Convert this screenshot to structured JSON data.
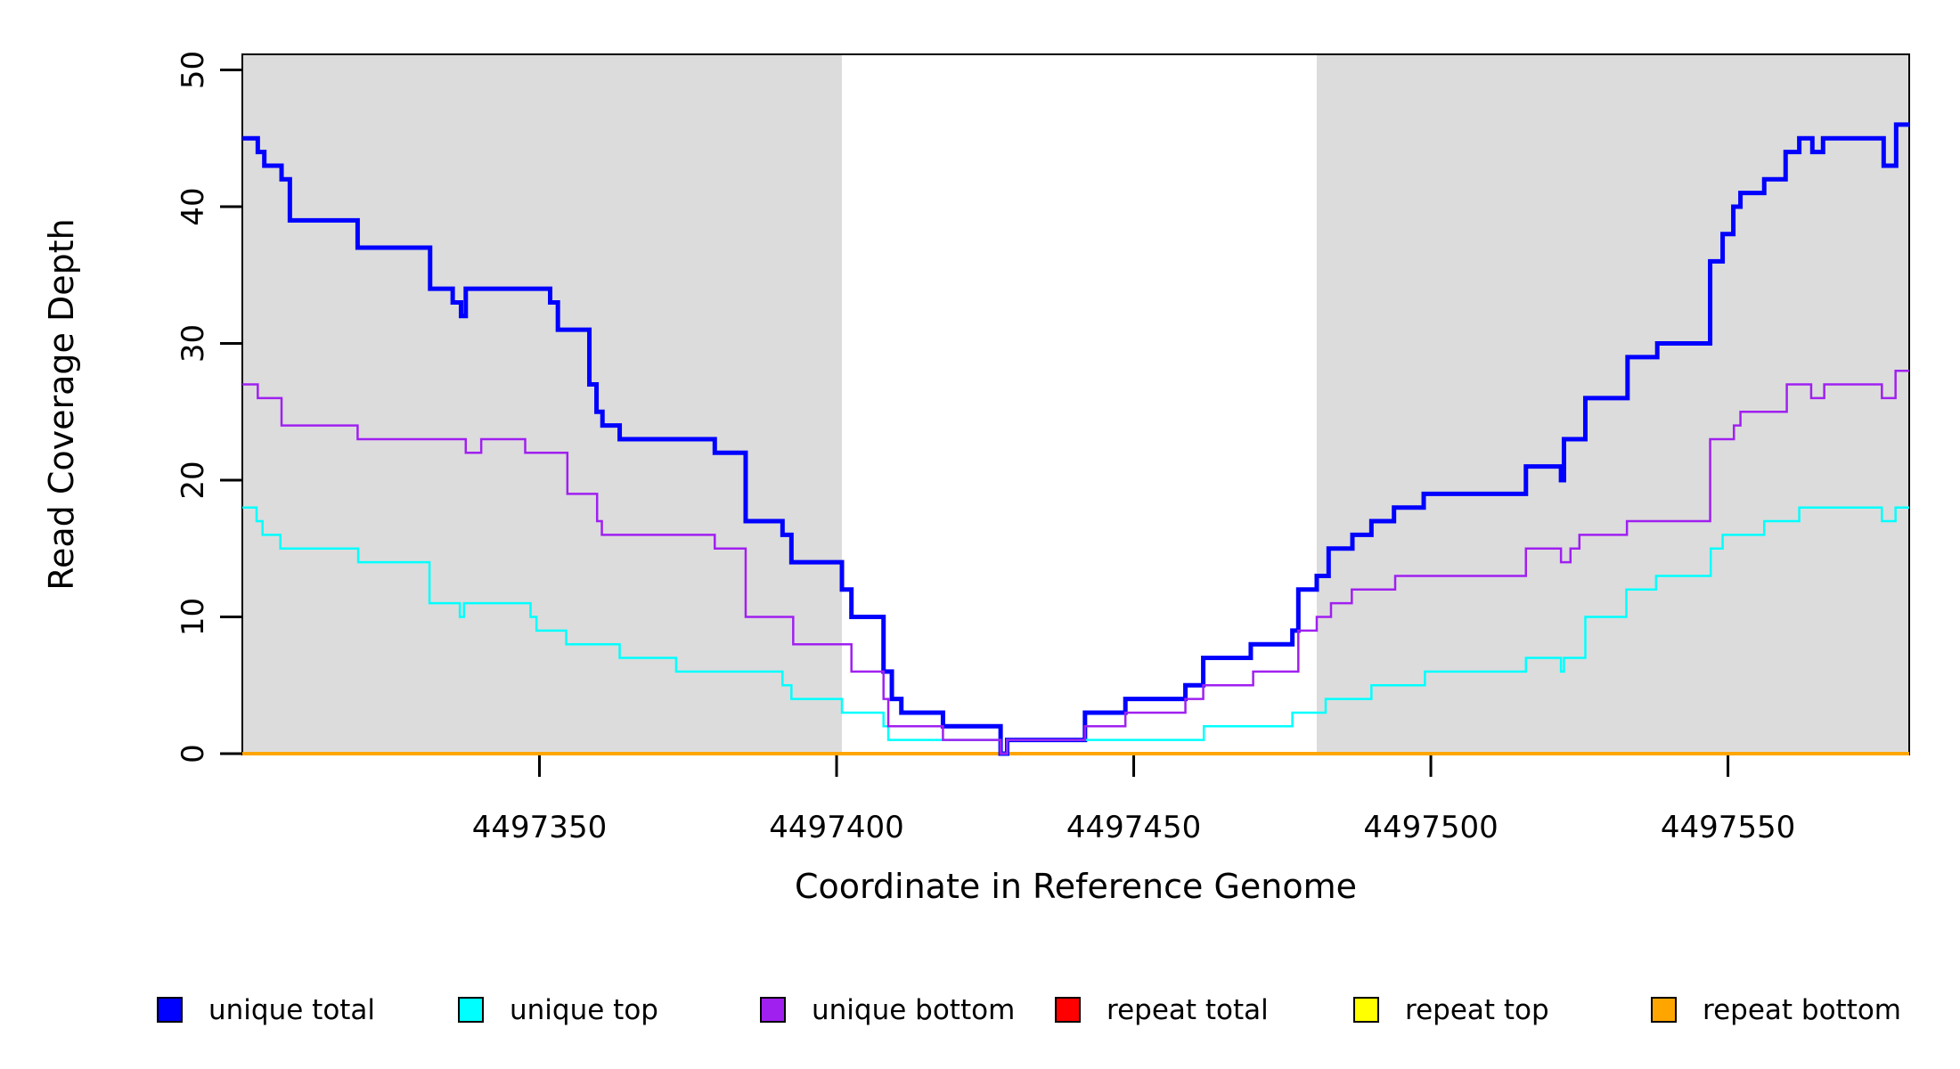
{
  "chart_data": {
    "type": "line",
    "subtype": "step-coverage-plot",
    "xlabel": "Coordinate in Reference Genome",
    "ylabel": "Read Coverage Depth",
    "xlim": [
      4497300,
      4497580.5
    ],
    "ylim": [
      0,
      50
    ],
    "x_ticks": [
      4497350,
      4497400,
      4497450,
      4497500,
      4497550
    ],
    "x_tick_labels": [
      "4497350",
      "4497400",
      "4497450",
      "4497500",
      "4497550"
    ],
    "y_ticks": [
      0,
      10,
      20,
      30,
      40,
      50
    ],
    "y_tick_labels": [
      "0",
      "10",
      "20",
      "30",
      "40",
      "50"
    ],
    "grid": "off",
    "legend_position": "bottom",
    "background_color": "#ffffff",
    "shaded_region_color": "#DCDCDC",
    "shaded_regions": [
      {
        "x0": 4497300,
        "x1": 4497400.9
      },
      {
        "x0": 4497480.8,
        "x1": 4497580.5
      }
    ],
    "series": [
      {
        "name": "repeat total",
        "color": "#FF0000",
        "width": 3,
        "points": [
          [
            4497300,
            0
          ],
          [
            4497580.5,
            0
          ]
        ]
      },
      {
        "name": "repeat top",
        "color": "#FFFF00",
        "width": 3,
        "points": [
          [
            4497300,
            0
          ],
          [
            4497580.5,
            0
          ]
        ]
      },
      {
        "name": "repeat bottom",
        "color": "#FFA500",
        "width": 4,
        "points": [
          [
            4497300,
            0
          ],
          [
            4497580.5,
            0
          ]
        ]
      },
      {
        "name": "unique total",
        "color": "#0000FF",
        "width": 5,
        "points": [
          [
            4497300,
            45
          ],
          [
            4497302.6,
            44
          ],
          [
            4497303.7,
            43
          ],
          [
            4497306.6,
            42
          ],
          [
            4497308,
            39
          ],
          [
            4497319.4,
            37
          ],
          [
            4497331.6,
            34
          ],
          [
            4497335.4,
            33
          ],
          [
            4497336.8,
            32
          ],
          [
            4497337.6,
            34
          ],
          [
            4497351.8,
            33
          ],
          [
            4497353.1,
            31
          ],
          [
            4497358.4,
            27
          ],
          [
            4497359.6,
            25
          ],
          [
            4497360.6,
            24
          ],
          [
            4497363.5,
            23
          ],
          [
            4497379.5,
            22
          ],
          [
            4497384.7,
            17
          ],
          [
            4497390.9,
            16
          ],
          [
            4497392.4,
            14
          ],
          [
            4497400.9,
            12
          ],
          [
            4497402.5,
            10
          ],
          [
            4497407.9,
            6
          ],
          [
            4497409.3,
            4
          ],
          [
            4497410.9,
            3
          ],
          [
            4497417.9,
            2
          ],
          [
            4497427.6,
            0
          ],
          [
            4497428.7,
            1
          ],
          [
            4497441.8,
            3
          ],
          [
            4497448.6,
            4
          ],
          [
            4497458.7,
            5
          ],
          [
            4497461.7,
            7
          ],
          [
            4497469.7,
            8
          ],
          [
            4497476.7,
            9
          ],
          [
            4497477.7,
            12
          ],
          [
            4497480.8,
            13
          ],
          [
            4497482.8,
            15
          ],
          [
            4497486.8,
            16
          ],
          [
            4497490,
            17
          ],
          [
            4497493.8,
            18
          ],
          [
            4497498.8,
            19
          ],
          [
            4497516,
            21
          ],
          [
            4497521.9,
            20
          ],
          [
            4497522.4,
            23
          ],
          [
            4497526,
            26
          ],
          [
            4497533.1,
            29
          ],
          [
            4497538.1,
            30
          ],
          [
            4497547,
            36
          ],
          [
            4497549.1,
            38
          ],
          [
            4497550.9,
            40
          ],
          [
            4497552.1,
            41
          ],
          [
            4497556.1,
            42
          ],
          [
            4497559.7,
            44
          ],
          [
            4497562,
            45
          ],
          [
            4497564.2,
            44
          ],
          [
            4497566,
            45
          ],
          [
            4497576.2,
            43
          ],
          [
            4497578.3,
            46
          ],
          [
            4497580.5,
            46
          ]
        ]
      },
      {
        "name": "unique top",
        "color": "#00FFFF",
        "width": 2.5,
        "points": [
          [
            4497300,
            18
          ],
          [
            4497302.4,
            17
          ],
          [
            4497303.4,
            16
          ],
          [
            4497306.4,
            15
          ],
          [
            4497319.5,
            14
          ],
          [
            4497331.5,
            11
          ],
          [
            4497336.6,
            10
          ],
          [
            4497337.3,
            11
          ],
          [
            4497348.5,
            10
          ],
          [
            4497349.5,
            9
          ],
          [
            4497354.5,
            8
          ],
          [
            4497363.5,
            7
          ],
          [
            4497373,
            6
          ],
          [
            4497390.9,
            5
          ],
          [
            4497392.4,
            4
          ],
          [
            4497400.9,
            3
          ],
          [
            4497407.9,
            2
          ],
          [
            4497408.7,
            1
          ],
          [
            4497427.6,
            0
          ],
          [
            4497428.7,
            1
          ],
          [
            4497461.8,
            2
          ],
          [
            4497476.7,
            3
          ],
          [
            4497482.3,
            4
          ],
          [
            4497490,
            5
          ],
          [
            4497499,
            6
          ],
          [
            4497516,
            7
          ],
          [
            4497521.9,
            6
          ],
          [
            4497522.4,
            7
          ],
          [
            4497526,
            10
          ],
          [
            4497532.9,
            12
          ],
          [
            4497537.9,
            13
          ],
          [
            4497547.1,
            15
          ],
          [
            4497549.1,
            16
          ],
          [
            4497550.9,
            16
          ],
          [
            4497556.1,
            17
          ],
          [
            4497562,
            18
          ],
          [
            4497575.9,
            17
          ],
          [
            4497578.2,
            18
          ],
          [
            4497580.5,
            18
          ]
        ]
      },
      {
        "name": "unique bottom",
        "color": "#A020F0",
        "width": 2.5,
        "points": [
          [
            4497300,
            27
          ],
          [
            4497302.6,
            26
          ],
          [
            4497306.6,
            24
          ],
          [
            4497319.4,
            23
          ],
          [
            4497337.6,
            22
          ],
          [
            4497340.2,
            23
          ],
          [
            4497347.6,
            22
          ],
          [
            4497354.7,
            19
          ],
          [
            4497359.7,
            17
          ],
          [
            4497360.5,
            16
          ],
          [
            4497379.5,
            15
          ],
          [
            4497384.7,
            10
          ],
          [
            4497392.7,
            8
          ],
          [
            4497402.5,
            6
          ],
          [
            4497407.9,
            4
          ],
          [
            4497408.7,
            2
          ],
          [
            4497417.9,
            1
          ],
          [
            4497427.6,
            0
          ],
          [
            4497428.7,
            1
          ],
          [
            4497441.8,
            2
          ],
          [
            4497448.6,
            3
          ],
          [
            4497458.7,
            4
          ],
          [
            4497461.7,
            5
          ],
          [
            4497470.1,
            6
          ],
          [
            4497477.7,
            9
          ],
          [
            4497480.8,
            10
          ],
          [
            4497483.2,
            11
          ],
          [
            4497486.7,
            12
          ],
          [
            4497494,
            13
          ],
          [
            4497516,
            15
          ],
          [
            4497521.9,
            14
          ],
          [
            4497523.5,
            15
          ],
          [
            4497525,
            16
          ],
          [
            4497533,
            17
          ],
          [
            4497547,
            23
          ],
          [
            4497551,
            24
          ],
          [
            4497552.1,
            25
          ],
          [
            4497559.9,
            27
          ],
          [
            4497564,
            26
          ],
          [
            4497566.2,
            27
          ],
          [
            4497575.9,
            26
          ],
          [
            4497578.2,
            28
          ],
          [
            4497580.5,
            28
          ]
        ]
      }
    ],
    "legend": [
      {
        "label": "unique total",
        "color": "#0000FF"
      },
      {
        "label": "unique top",
        "color": "#00FFFF"
      },
      {
        "label": "unique bottom",
        "color": "#A020F0"
      },
      {
        "label": "repeat total",
        "color": "#FF0000"
      },
      {
        "label": "repeat top",
        "color": "#FFFF00"
      },
      {
        "label": "repeat bottom",
        "color": "#FFA500"
      }
    ]
  }
}
